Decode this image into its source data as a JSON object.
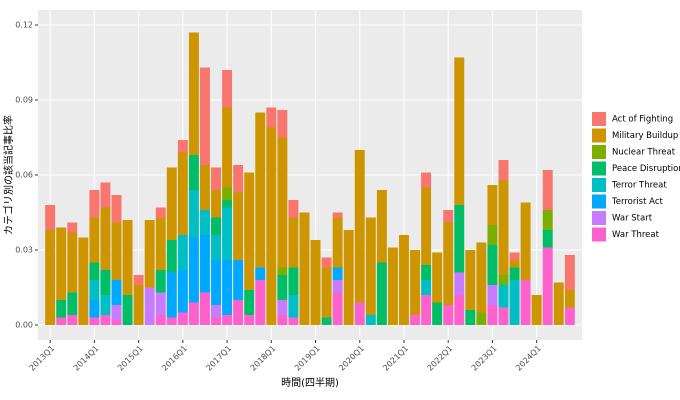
{
  "chart_data": {
    "type": "stacked_bar",
    "x_label": "時間(四半期)",
    "y_label": "カテゴリ別の該当記事比率",
    "categories": [
      "2013Q1",
      null,
      null,
      null,
      "2014Q1",
      null,
      null,
      null,
      "2015Q1",
      null,
      null,
      null,
      "2016Q1",
      null,
      null,
      null,
      "2017Q1",
      null,
      null,
      null,
      "2018Q1",
      null,
      null,
      null,
      "2019Q1",
      null,
      null,
      null,
      "2020Q1",
      null,
      null,
      null,
      "2021Q1",
      null,
      null,
      null,
      "2022Q1",
      null,
      null,
      null,
      "2023Q1",
      null,
      null,
      null,
      "2024Q1",
      null,
      null,
      null
    ],
    "ylim": [
      -0.006,
      0.126
    ],
    "yticks": [
      {
        "value": 0,
        "label": "0.00"
      },
      {
        "value": 0.03,
        "label": "0.03"
      },
      {
        "value": 0.06,
        "label": "0.06"
      },
      {
        "value": 0.09,
        "label": "0.09"
      },
      {
        "value": 0.12,
        "label": "0.12"
      }
    ],
    "grid": true,
    "legend": "right",
    "series": [
      {
        "name": "Act of Fighting",
        "color": "#F8766D",
        "values": [
          0.01,
          0,
          0.004,
          0,
          0.011,
          0.01,
          0.011,
          0,
          0.004,
          0,
          0.004,
          0,
          0.005,
          0,
          0.039,
          0.009,
          0.015,
          0.011,
          0,
          0,
          0.008,
          0.011,
          0.007,
          0,
          0,
          0.004,
          0.002,
          0,
          0,
          0,
          0,
          0,
          0,
          0,
          0.006,
          0,
          0.005,
          0,
          0,
          0,
          0,
          0.008,
          0.003,
          0,
          0,
          0.016,
          0,
          0.014
        ]
      },
      {
        "name": "Military Buildup",
        "color": "#CD9600",
        "values": [
          0.038,
          0.029,
          0.024,
          0.035,
          0.018,
          0.025,
          0.023,
          0.03,
          0.016,
          0.027,
          0.021,
          0.029,
          0.033,
          0.049,
          0.018,
          0.011,
          0.032,
          0.027,
          0.047,
          0.062,
          0.079,
          0.052,
          0.02,
          0.045,
          0.034,
          0.02,
          0.02,
          0.038,
          0.061,
          0.039,
          0.029,
          0.031,
          0.036,
          0.026,
          0.031,
          0.02,
          0.033,
          0.059,
          0.024,
          0.028,
          0.016,
          0.038,
          0.003,
          0.031,
          0.012,
          0,
          0.017,
          0.007
        ]
      },
      {
        "name": "Nuclear Threat",
        "color": "#7CAE00",
        "values": [
          0,
          0,
          0,
          0,
          0,
          0,
          0,
          0,
          0,
          0,
          0,
          0,
          0,
          0,
          0,
          0,
          0.005,
          0,
          0,
          0,
          0,
          0.003,
          0,
          0,
          0,
          0,
          0,
          0,
          0,
          0,
          0,
          0,
          0,
          0,
          0,
          0,
          0,
          0,
          0,
          0.005,
          0.008,
          0.004,
          0,
          0,
          0,
          0.008,
          0,
          0
        ]
      },
      {
        "name": "Peace Disruption",
        "color": "#00BE67",
        "values": [
          0,
          0.007,
          0.009,
          0,
          0.007,
          0.01,
          0,
          0.012,
          0,
          0,
          0.009,
          0.013,
          0,
          0.014,
          0,
          0.007,
          0.003,
          0,
          0.01,
          0,
          0,
          0.01,
          0.011,
          0,
          0,
          0.003,
          0,
          0,
          0,
          0,
          0.025,
          0,
          0,
          0,
          0.006,
          0.009,
          0,
          0.027,
          0.006,
          0,
          0.016,
          0,
          0.005,
          0,
          0,
          0.007,
          0,
          0
        ]
      },
      {
        "name": "Terror Threat",
        "color": "#00BFC4",
        "values": [
          0,
          0,
          0,
          0,
          0.008,
          0.008,
          0,
          0,
          0,
          0,
          0,
          0,
          0.014,
          0.019,
          0.01,
          0.01,
          0.021,
          0,
          0,
          0,
          0,
          0,
          0.009,
          0,
          0,
          0,
          0,
          0,
          0,
          0.004,
          0,
          0,
          0,
          0,
          0.006,
          0,
          0,
          0,
          0,
          0,
          0,
          0.009,
          0.018,
          0,
          0,
          0,
          0,
          0
        ]
      },
      {
        "name": "Terrorist Act",
        "color": "#00A9FF",
        "values": [
          0,
          0,
          0,
          0,
          0.007,
          0,
          0.01,
          0,
          0,
          0,
          0,
          0.018,
          0.017,
          0.026,
          0.023,
          0.018,
          0.022,
          0.016,
          0,
          0.005,
          0,
          0,
          0,
          0,
          0,
          0,
          0.005,
          0,
          0,
          0,
          0,
          0,
          0,
          0,
          0,
          0,
          0,
          0,
          0,
          0,
          0,
          0,
          0,
          0,
          0,
          0,
          0,
          0
        ]
      },
      {
        "name": "War Start",
        "color": "#C77CFF",
        "values": [
          0,
          0,
          0,
          0,
          0,
          0,
          0.006,
          0,
          0,
          0.015,
          0.009,
          0,
          0,
          0,
          0,
          0.005,
          0,
          0,
          0,
          0,
          0,
          0.006,
          0,
          0,
          0,
          0,
          0.005,
          0,
          0,
          0,
          0,
          0,
          0,
          0,
          0,
          0,
          0,
          0.009,
          0,
          0,
          0.008,
          0,
          0,
          0,
          0,
          0,
          0,
          0
        ]
      },
      {
        "name": "War Threat",
        "color": "#FF61CC",
        "values": [
          0,
          0.003,
          0.004,
          0,
          0.003,
          0.004,
          0.002,
          0,
          0,
          0,
          0.004,
          0.003,
          0.005,
          0.009,
          0.013,
          0.003,
          0.004,
          0.01,
          0.004,
          0.018,
          0,
          0.004,
          0.003,
          0,
          0,
          0,
          0.013,
          0,
          0.009,
          0,
          0,
          0,
          0,
          0.004,
          0.012,
          0,
          0.008,
          0.012,
          0,
          0,
          0.008,
          0.007,
          0,
          0.018,
          0,
          0.031,
          0,
          0.007
        ]
      }
    ]
  }
}
